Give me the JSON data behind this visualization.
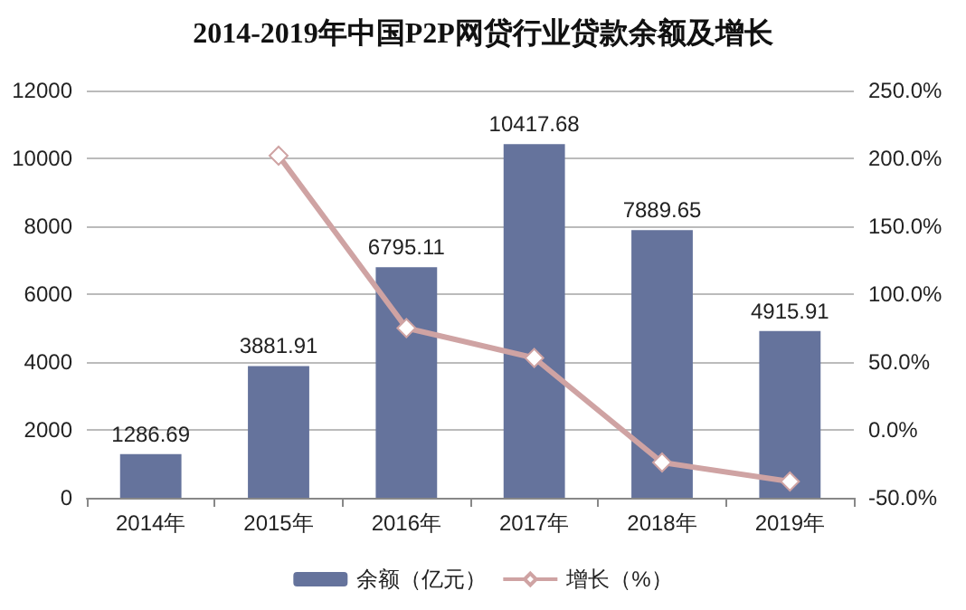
{
  "chart_data": {
    "type": "bar",
    "title": "2014-2019年中国P2P网贷行业贷款余额及增长",
    "categories": [
      "2014年",
      "2015年",
      "2016年",
      "2017年",
      "2018年",
      "2019年"
    ],
    "series": [
      {
        "name": "余额（亿元）",
        "color": "#65739c",
        "values": [
          1286.69,
          3881.91,
          6795.11,
          10417.68,
          7889.65,
          4915.91
        ],
        "data_labels": true
      },
      {
        "name": "增长（%）",
        "type": "line",
        "axis": "y2",
        "color": "#cfa3a3",
        "marker": "diamond",
        "values": [
          null,
          202,
          75,
          53,
          -24,
          -38
        ]
      }
    ],
    "ylim": [
      0,
      12000
    ],
    "yticks": [
      0,
      2000,
      4000,
      6000,
      8000,
      10000,
      12000
    ],
    "y2lim": [
      -50,
      250
    ],
    "y2ticks": [
      {
        "value": -50,
        "label": "-50.0%"
      },
      {
        "value": 0,
        "label": "0.0%"
      },
      {
        "value": 50,
        "label": "50.0%"
      },
      {
        "value": 100,
        "label": "100.0%"
      },
      {
        "value": 150,
        "label": "150.0%"
      },
      {
        "value": 200,
        "label": "200.0%"
      },
      {
        "value": 250,
        "label": "250.0%"
      }
    ],
    "grid": "y",
    "legend": "bottom"
  }
}
